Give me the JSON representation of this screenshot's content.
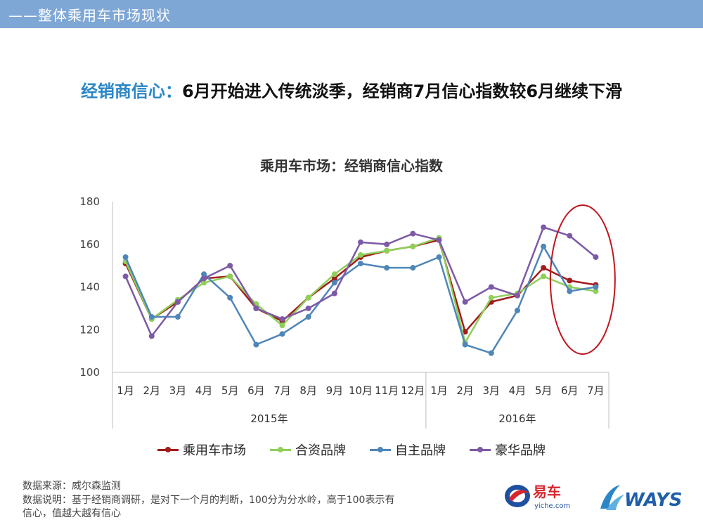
{
  "header": {
    "title": "——整体乘用车市场现状"
  },
  "headline": {
    "accent": "经销商信心：",
    "rest": "6月开始进入传统淡季，经销商7月信心指数较6月继续下滑"
  },
  "chart_data": {
    "type": "line",
    "title": "乘用车市场：经销商信心指数",
    "ylim": [
      100,
      180
    ],
    "yticks": [
      100,
      120,
      140,
      160,
      180
    ],
    "grid": false,
    "legend_position": "bottom",
    "categories": [
      "1月",
      "2月",
      "3月",
      "4月",
      "5月",
      "6月",
      "7月",
      "8月",
      "9月",
      "10月",
      "11月",
      "12月",
      "1月",
      "2月",
      "3月",
      "4月",
      "5月",
      "6月",
      "7月"
    ],
    "year_groups": [
      {
        "label": "2015年",
        "count": 12
      },
      {
        "label": "2016年",
        "count": 7
      }
    ],
    "series": [
      {
        "name": "乘用车市场",
        "color": "#a31b1b",
        "values": [
          151,
          125,
          133,
          144,
          145,
          130,
          124,
          135,
          144,
          154,
          157,
          159,
          162,
          119,
          133,
          136,
          149,
          143,
          141
        ]
      },
      {
        "name": "合资品牌",
        "color": "#8fcf5a",
        "values": [
          152,
          125,
          134,
          142,
          145,
          132,
          122,
          135,
          146,
          155,
          157,
          159,
          163,
          114,
          135,
          137,
          145,
          140,
          138
        ]
      },
      {
        "name": "自主品牌",
        "color": "#4f86b8",
        "values": [
          154,
          126,
          126,
          146,
          135,
          113,
          118,
          126,
          142,
          151,
          149,
          149,
          154,
          113,
          109,
          129,
          159,
          138,
          140
        ]
      },
      {
        "name": "豪华品牌",
        "color": "#7d5aa5",
        "values": [
          145,
          117,
          133,
          144,
          150,
          130,
          125,
          130,
          137,
          161,
          160,
          165,
          162,
          133,
          140,
          136,
          168,
          164,
          154
        ]
      }
    ],
    "annotation": {
      "type": "ellipse",
      "color": "#c0161e",
      "covers": [
        "6月",
        "7月"
      ]
    }
  },
  "footnotes": {
    "source": "数据来源：威尔森监测",
    "note_line1": "数据说明：基于经销商调研，是对下一个月的判断，100分为分水岭，高于100表示有",
    "note_line2": "信心，值越大越有信心"
  },
  "logos": {
    "yiche_cn": "易车",
    "yiche_en": "yiche.com",
    "ways": "WAYS"
  }
}
